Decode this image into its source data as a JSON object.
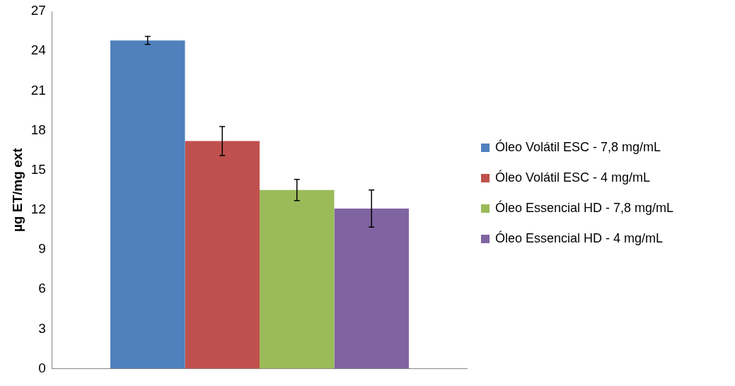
{
  "chart_data": {
    "type": "bar",
    "ylabel": "µg ET/mg ext",
    "categories": [
      null
    ],
    "series": [
      {
        "name": "Óleo Volátil ESC - 7,8 mg/mL",
        "color": "#4f81bd",
        "values": [
          24.8
        ],
        "errors": [
          0.3
        ]
      },
      {
        "name": "Óleo Volátil ESC - 4 mg/mL",
        "color": "#c0504d",
        "values": [
          17.2
        ],
        "errors": [
          1.1
        ]
      },
      {
        "name": "Óleo Essencial HD - 7,8 mg/mL",
        "color": "#9bbb59",
        "values": [
          13.5
        ],
        "errors": [
          0.8
        ]
      },
      {
        "name": "Óleo Essencial HD - 4 mg/mL",
        "color": "#8064a2",
        "values": [
          12.1
        ],
        "errors": [
          1.4
        ]
      }
    ],
    "ylim": [
      0,
      27
    ],
    "yticks": [
      0,
      3,
      6,
      9,
      12,
      15,
      18,
      21,
      24,
      27
    ],
    "grid": false,
    "legend": "right"
  }
}
